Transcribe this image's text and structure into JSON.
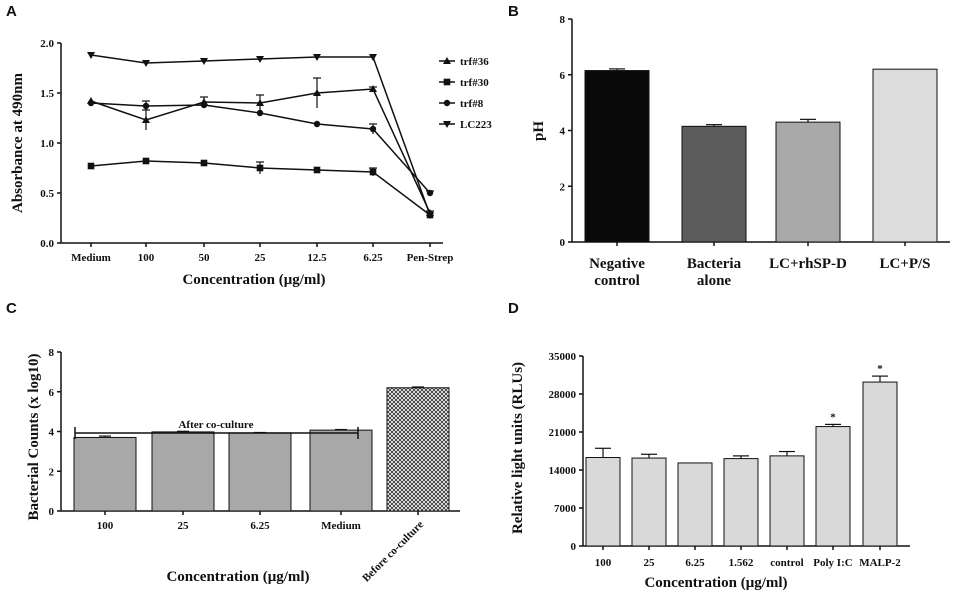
{
  "panels": {
    "A": {
      "label": "A"
    },
    "B": {
      "label": "B"
    },
    "C": {
      "label": "C"
    },
    "D": {
      "label": "D"
    }
  },
  "colors": {
    "axis": "#111111",
    "bar_negative_control": "#0a0a0a",
    "bar_bacteria_alone": "#5c5c5c",
    "bar_lc_rhspd": "#a9a9a9",
    "bar_lc_ps": "#dcdcdc",
    "bar_gray_c": "#a8a8a8",
    "bar_light_d": "#d9d9d9"
  },
  "chart_data": [
    {
      "panel": "A",
      "type": "line",
      "xlabel": "Concentration (μg/ml)",
      "ylabel": "Absorbance at 490nm",
      "categories": [
        "Medium",
        "100",
        "50",
        "25",
        "12.5",
        "6.25",
        "Pen-Strep"
      ],
      "ylim": [
        0,
        2.0
      ],
      "yticks": [
        "0.0",
        "0.5",
        "1.0",
        "1.5",
        "2.0"
      ],
      "legend_position": "right",
      "series": [
        {
          "name": "trf#36",
          "marker": "triangle-up",
          "values": [
            1.42,
            1.23,
            1.41,
            1.4,
            1.5,
            1.54,
            0.3
          ],
          "errors": [
            0,
            0.1,
            0.05,
            0.08,
            0.15,
            0.02,
            0.02
          ]
        },
        {
          "name": "trf#30",
          "marker": "square",
          "values": [
            0.77,
            0.82,
            0.8,
            0.75,
            0.73,
            0.71,
            0.28
          ],
          "errors": [
            0,
            0.01,
            0.01,
            0.06,
            0.01,
            0.04,
            0.01
          ]
        },
        {
          "name": "trf#8",
          "marker": "circle",
          "values": [
            1.4,
            1.37,
            1.38,
            1.3,
            1.19,
            1.14,
            0.5
          ],
          "errors": [
            0,
            0.05,
            0.01,
            0.01,
            0.01,
            0.05,
            0.02
          ]
        },
        {
          "name": "LC223",
          "marker": "triangle-down",
          "values": [
            1.88,
            1.8,
            1.82,
            1.84,
            1.86,
            1.86,
            0.28
          ],
          "errors": [
            0.01,
            0.01,
            0.01,
            0.01,
            0.01,
            0.01,
            0.01
          ]
        }
      ]
    },
    {
      "panel": "B",
      "type": "bar",
      "ylabel": "pH",
      "categories": [
        [
          "Negative",
          "control"
        ],
        [
          "Bacteria",
          "alone"
        ],
        [
          "LC+rhSP-D"
        ],
        [
          "LC+P/S"
        ]
      ],
      "values": [
        6.15,
        4.15,
        4.3,
        6.2
      ],
      "errors": [
        0.06,
        0.06,
        0.1,
        0
      ],
      "ylim": [
        0,
        8
      ],
      "yticks": [
        "0",
        "2",
        "4",
        "6",
        "8"
      ]
    },
    {
      "panel": "C",
      "type": "bar",
      "xlabel": "Concentration (μg/ml)",
      "ylabel": "Bacterial Counts (x log10)",
      "categories": [
        "100",
        "25",
        "6.25",
        "Medium",
        "Before co-culture"
      ],
      "values": [
        3.7,
        3.98,
        3.93,
        4.07,
        6.2
      ],
      "errors": [
        0.07,
        0.03,
        0.02,
        0.03,
        0.04
      ],
      "ylim": [
        0,
        8
      ],
      "yticks": [
        "0",
        "2",
        "4",
        "6",
        "8"
      ],
      "annotation": "After co-culture"
    },
    {
      "panel": "D",
      "type": "bar",
      "xlabel": "Concentration (μg/ml)",
      "ylabel": "Relative light units (RLUs)",
      "categories": [
        "100",
        "25",
        "6.25",
        "1.562",
        "control",
        "Poly I:C",
        "MALP-2"
      ],
      "values": [
        16300,
        16200,
        15300,
        16100,
        16600,
        22000,
        30200
      ],
      "errors": [
        1700,
        700,
        0,
        500,
        800,
        400,
        1100
      ],
      "significance": [
        "",
        "",
        "",
        "",
        "",
        "*",
        "*"
      ],
      "ylim": [
        0,
        35000
      ],
      "yticks": [
        "0",
        "7000",
        "14000",
        "21000",
        "28000",
        "35000"
      ]
    }
  ]
}
